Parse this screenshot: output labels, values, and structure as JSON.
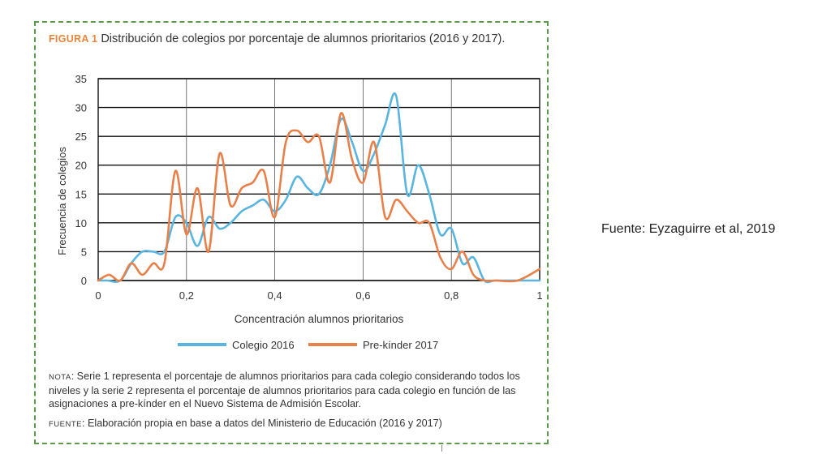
{
  "figure": {
    "label": "FIGURA 1",
    "title": "Distribución de colegios por porcentaje de alumnos prioritarios (2016 y 2017).",
    "note_label": "NOTA",
    "note_text": ": Serie 1 representa el porcentaje de alumnos prioritarios para cada colegio considerando todos los niveles y la serie 2 representa el porcentaje de alumnos prioritarios para cada colegio en función de las asignaciones a pre-kínder en el Nuevo Sistema de Admisión Escolar.",
    "source_label": "FUENTE",
    "source_text": ": Elaboración propia en base a datos del Ministerio de Educación (2016 y 2017)"
  },
  "side_source": "Fuente: Eyzaguirre et al, 2019",
  "colors": {
    "colegio_2016": "#5ab4e0",
    "prekinder_2017": "#e8804a",
    "frame": "#5a9a4a"
  },
  "chart_data": {
    "type": "line",
    "xlabel": "Concentración alumnos prioritarios",
    "ylabel": "Frecuencia de colegios",
    "xlim": [
      0,
      1
    ],
    "ylim": [
      0,
      35
    ],
    "xticks": [
      0,
      0.2,
      0.4,
      0.6,
      0.8,
      1
    ],
    "xtick_labels": [
      "0",
      "0,2",
      "0,4",
      "0,6",
      "0,8",
      "1"
    ],
    "yticks": [
      0,
      5,
      10,
      15,
      20,
      25,
      30,
      35
    ],
    "ytick_labels": [
      "0",
      "5",
      "10",
      "15",
      "20",
      "25",
      "30",
      "35"
    ],
    "grid": true,
    "legend": "bottom",
    "series": [
      {
        "name": "Colegio 2016",
        "color": "#5ab4e0",
        "x": [
          0,
          0.02,
          0.05,
          0.075,
          0.1,
          0.125,
          0.15,
          0.175,
          0.2,
          0.225,
          0.25,
          0.275,
          0.3,
          0.325,
          0.35,
          0.375,
          0.4,
          0.425,
          0.45,
          0.475,
          0.5,
          0.525,
          0.55,
          0.575,
          0.6,
          0.625,
          0.65,
          0.675,
          0.7,
          0.725,
          0.75,
          0.775,
          0.8,
          0.825,
          0.85,
          0.875,
          0.9,
          0.95,
          1
        ],
        "y": [
          0,
          0,
          0,
          3,
          5,
          5,
          5,
          11,
          10,
          6,
          11,
          9,
          10,
          12,
          13,
          14,
          12,
          14,
          18,
          16,
          15,
          20,
          28,
          24,
          19,
          22,
          27,
          32,
          15,
          20,
          15,
          8,
          9,
          3,
          4,
          0,
          0,
          0,
          0
        ]
      },
      {
        "name": "Pre-kínder 2017",
        "color": "#e8804a",
        "x": [
          0,
          0.025,
          0.05,
          0.075,
          0.1,
          0.125,
          0.15,
          0.175,
          0.2,
          0.225,
          0.25,
          0.275,
          0.3,
          0.325,
          0.35,
          0.375,
          0.4,
          0.425,
          0.45,
          0.475,
          0.5,
          0.525,
          0.55,
          0.575,
          0.6,
          0.625,
          0.65,
          0.675,
          0.7,
          0.725,
          0.75,
          0.775,
          0.8,
          0.825,
          0.85,
          0.875,
          0.9,
          0.95,
          1
        ],
        "y": [
          0,
          1,
          0,
          3,
          1,
          3,
          3,
          19,
          8,
          16,
          5,
          22,
          13,
          16,
          17,
          19,
          11,
          24,
          26,
          24,
          25,
          17,
          29,
          21,
          17,
          24,
          11,
          14,
          12,
          10,
          10,
          4,
          2,
          5,
          1,
          0,
          0,
          0,
          2
        ]
      }
    ]
  }
}
